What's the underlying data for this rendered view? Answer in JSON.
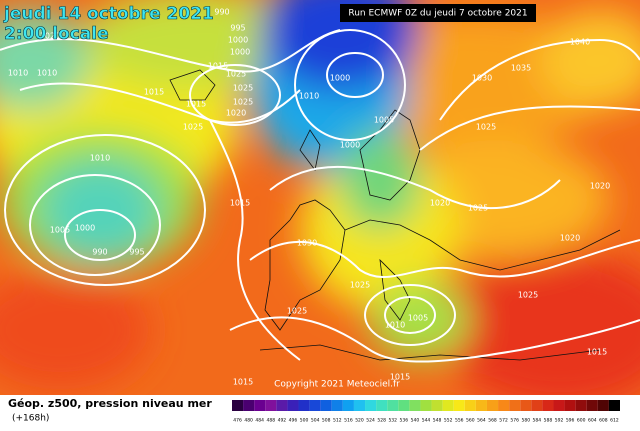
{
  "header": {
    "date": "jeudi 14 octobre 2021",
    "time": "2:00 locale",
    "run": "Run ECMWF 0Z du jeudi 7 octobre 2021"
  },
  "copyright": "Copyright 2021 Meteociel.fr",
  "footer": {
    "title": "Géop. z500, pression niveau mer",
    "lead": "(+168h)"
  },
  "isobar_labels": [
    "990",
    "995",
    "1000",
    "1000",
    "1020",
    "1010",
    "1010",
    "1015",
    "1015",
    "1015",
    "1025",
    "1025",
    "1025",
    "1020",
    "1025",
    "1010",
    "1000",
    "1005",
    "1000",
    "1030",
    "1035",
    "1025",
    "1040",
    "1010",
    "1015",
    "1005",
    "1000",
    "990",
    "995",
    "1020",
    "1025",
    "1020",
    "1020",
    "1030",
    "1025",
    "1025",
    "1025",
    "1005",
    "1010",
    "1015",
    "1015",
    "1015"
  ],
  "scale_labels": [
    "476",
    "480",
    "484",
    "488",
    "492",
    "496",
    "500",
    "504",
    "508",
    "512",
    "516",
    "520",
    "524",
    "528",
    "532",
    "536",
    "540",
    "544",
    "548",
    "552",
    "556",
    "560",
    "564",
    "568",
    "572",
    "576",
    "580",
    "584",
    "588",
    "592",
    "596",
    "600",
    "604",
    "608",
    "612"
  ]
}
